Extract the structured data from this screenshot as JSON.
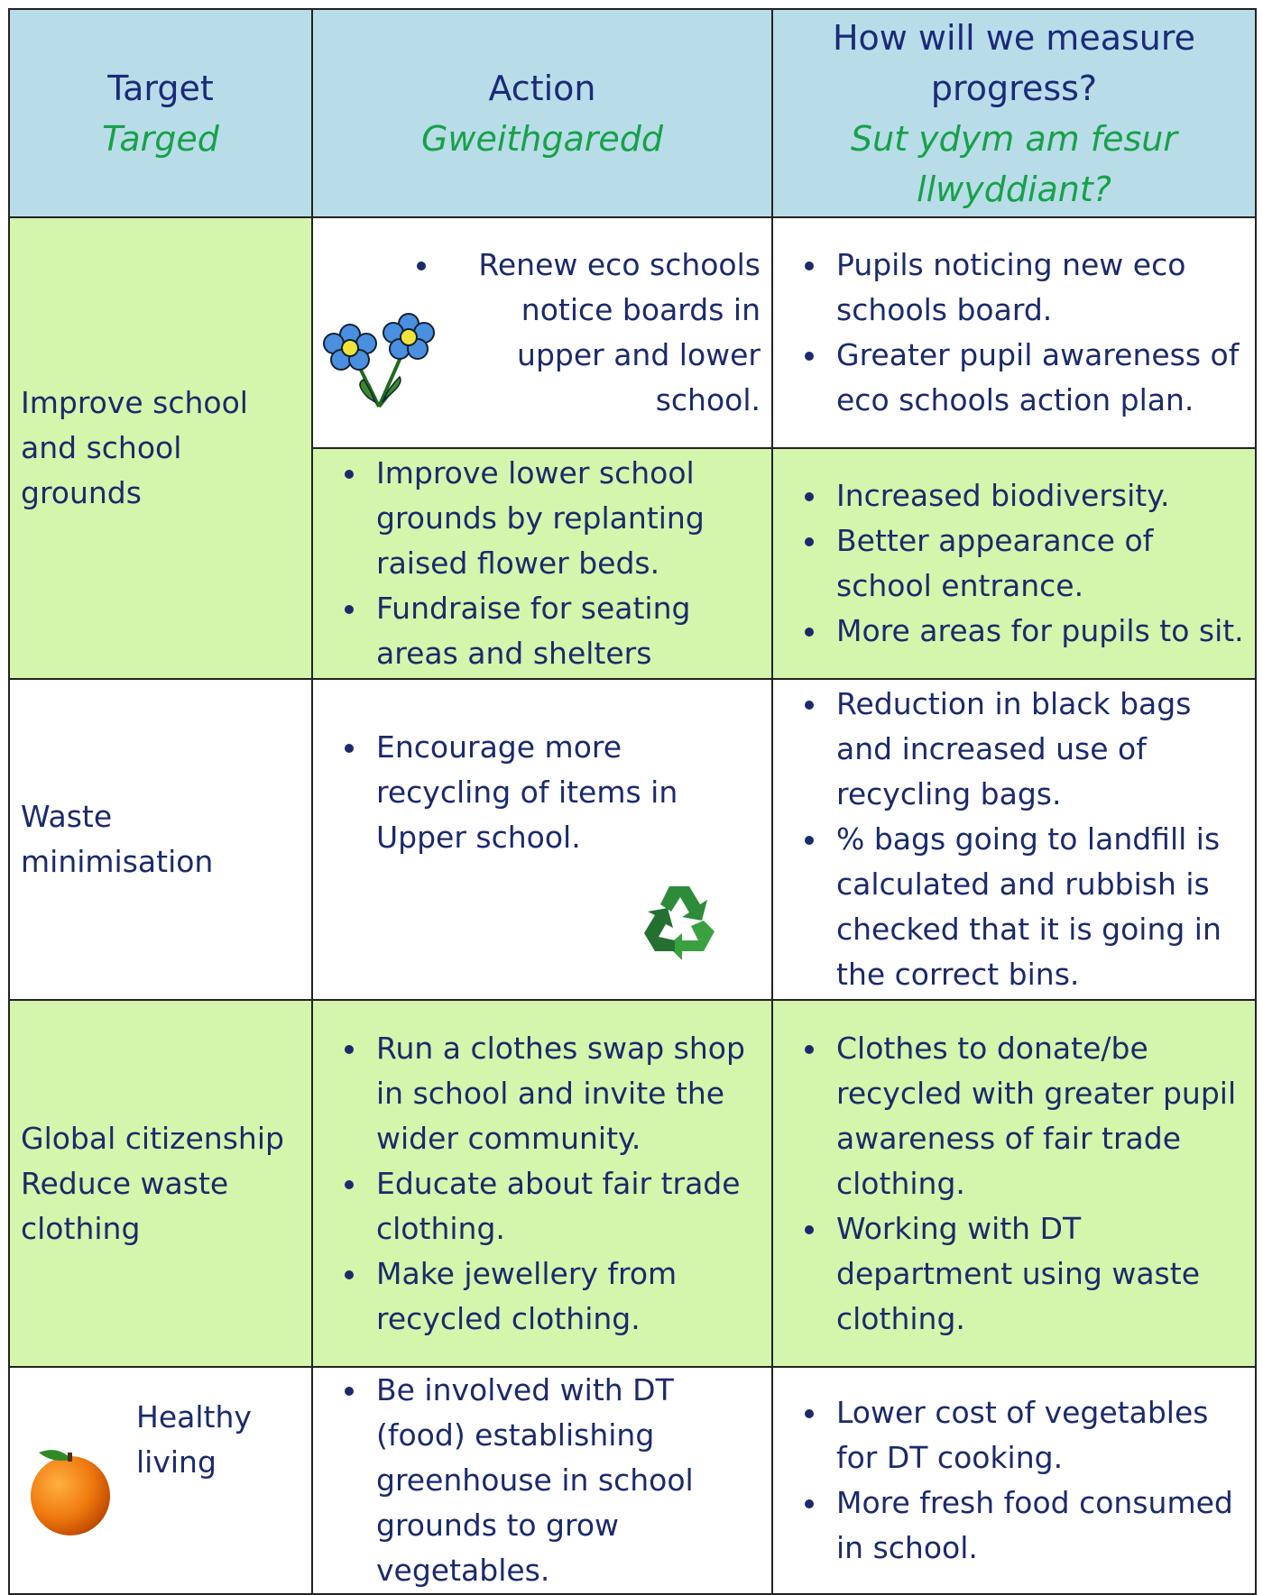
{
  "header": {
    "target": "Target",
    "target_welsh": "Targed",
    "action": "Action",
    "action_welsh": "Gweithgaredd",
    "measure": "How will we measure progress?",
    "measure_welsh": "Sut ydym am fesur llwyddiant?"
  },
  "rows": [
    {
      "target": [
        "Improve school and school grounds"
      ],
      "sections": [
        {
          "actions": [
            "Renew eco schools notice boards in upper and lower school."
          ],
          "measures": [
            "Pupils noticing new eco schools board.",
            "Greater pupil awareness of eco schools action plan."
          ]
        },
        {
          "actions": [
            "Improve lower school grounds by replanting raised flower beds.",
            "Fundraise for seating areas and shelters"
          ],
          "measures": [
            "Increased biodiversity.",
            "Better appearance of school entrance.",
            "More areas for pupils to sit."
          ]
        }
      ]
    },
    {
      "target": [
        "Waste minimisation"
      ],
      "sections": [
        {
          "actions": [
            "Encourage more recycling of items in Upper school."
          ],
          "measures": [
            "Reduction in black bags and increased use of recycling bags.",
            "% bags going to landfill is calculated and rubbish is checked that it is going in the correct bins."
          ]
        }
      ]
    },
    {
      "target": [
        "Global citizenship",
        "Reduce waste clothing"
      ],
      "sections": [
        {
          "actions": [
            "Run a clothes swap shop in school and invite the wider community.",
            "Educate about fair trade clothing.",
            "Make jewellery from recycled clothing."
          ],
          "measures": [
            "Clothes to donate/be recycled with greater pupil awareness of fair trade clothing.",
            "Working with DT department using waste clothing."
          ]
        }
      ]
    },
    {
      "target": [
        "Healthy living"
      ],
      "sections": [
        {
          "actions": [
            "Be involved with DT (food) establishing greenhouse in school grounds to grow vegetables."
          ],
          "measures": [
            "Lower cost of vegetables for DT cooking.",
            "More fresh food consumed in school."
          ]
        }
      ]
    }
  ]
}
